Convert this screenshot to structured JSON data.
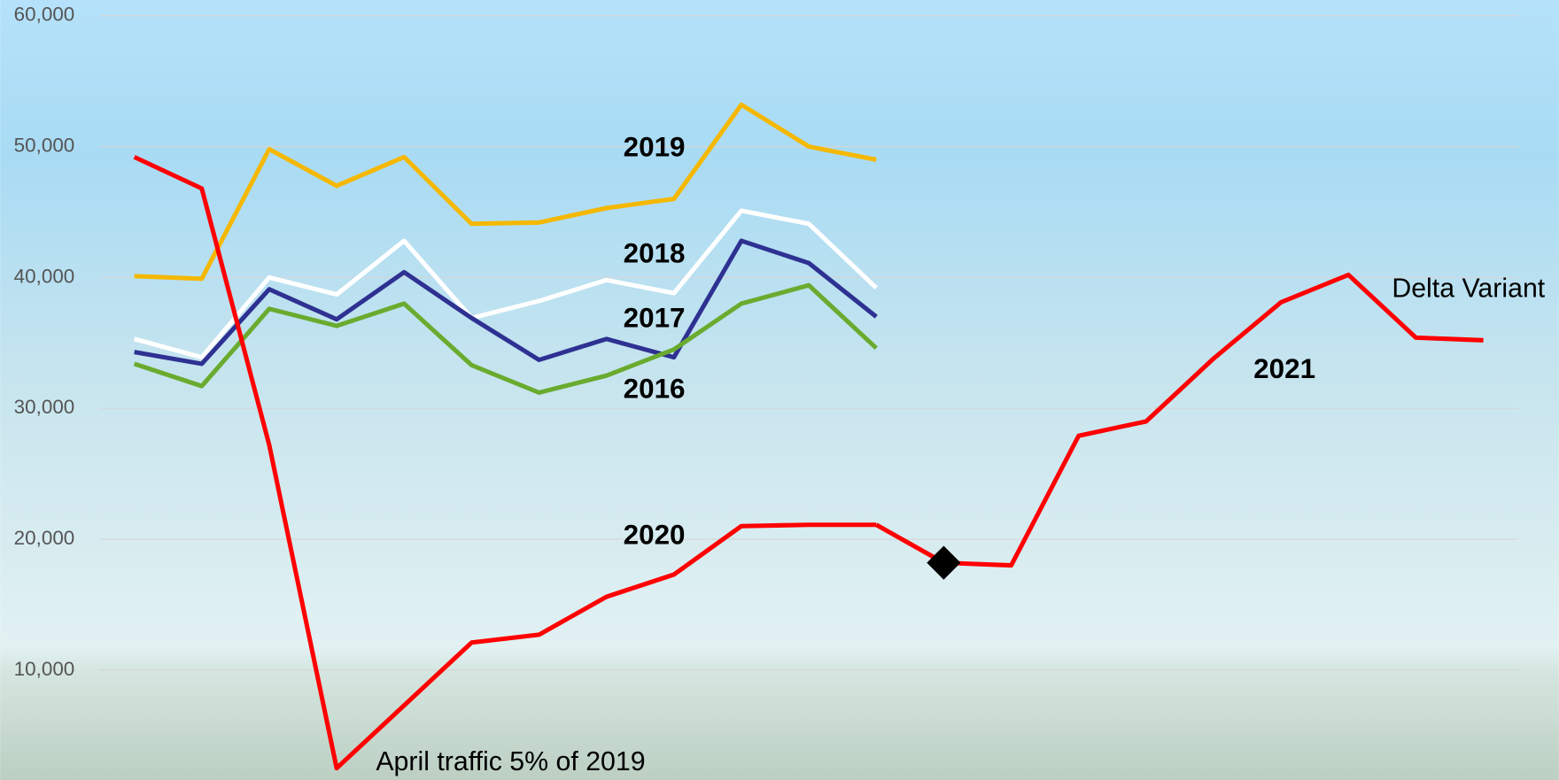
{
  "chart_data": {
    "type": "line",
    "categories": [
      null,
      null,
      null,
      null,
      null,
      null,
      null,
      null,
      null,
      null,
      null,
      null,
      null,
      null,
      null,
      null,
      null,
      null,
      null,
      null,
      null
    ],
    "ylim": [
      1600,
      61200
    ],
    "yticks": [
      {
        "value": 10000,
        "label": "10,000"
      },
      {
        "value": 20000,
        "label": "20,000"
      },
      {
        "value": 30000,
        "label": "30,000"
      },
      {
        "value": 40000,
        "label": "40,000"
      },
      {
        "value": 50000,
        "label": "50,000"
      },
      {
        "value": 60000,
        "label": "60,000"
      }
    ],
    "grid": true,
    "series": [
      {
        "name": "2019",
        "color": "#f5b800",
        "values": [
          40100,
          39900,
          49800,
          47000,
          49200,
          44100,
          44200,
          45300,
          46000,
          53200,
          50000,
          49000,
          null,
          null,
          null,
          null,
          null,
          null,
          null,
          null,
          null
        ]
      },
      {
        "name": "2018",
        "color": "#ffffff",
        "values": [
          35300,
          33900,
          40000,
          38700,
          42800,
          36900,
          38200,
          39800,
          38800,
          45100,
          44100,
          39200,
          null,
          null,
          null,
          null,
          null,
          null,
          null,
          null,
          null
        ]
      },
      {
        "name": "2017",
        "color": "#2e3192",
        "values": [
          34300,
          33400,
          39100,
          36800,
          40400,
          36900,
          33700,
          35300,
          33900,
          42800,
          41100,
          37000,
          null,
          null,
          null,
          null,
          null,
          null,
          null,
          null,
          null
        ]
      },
      {
        "name": "2016",
        "color": "#6aab2f",
        "values": [
          33400,
          31700,
          37600,
          36300,
          38000,
          33300,
          31200,
          32500,
          34500,
          38000,
          39400,
          34600,
          null,
          null,
          null,
          null,
          null,
          null,
          null,
          null,
          null
        ]
      },
      {
        "name": "2020",
        "color": "#ff0000",
        "values": [
          49200,
          46800,
          27200,
          2500,
          7300,
          12100,
          12700,
          15600,
          17300,
          21000,
          21100,
          21100,
          null,
          null,
          null,
          null,
          null,
          null,
          null,
          null,
          null
        ]
      },
      {
        "name": "2021",
        "color": "#ff0000",
        "values": [
          null,
          null,
          null,
          null,
          null,
          null,
          null,
          null,
          null,
          null,
          null,
          21100,
          18200,
          18000,
          27900,
          29000,
          33800,
          38100,
          40200,
          35400,
          35200
        ]
      }
    ],
    "markers": [
      {
        "series": 5,
        "index": 12,
        "shape": "diamond",
        "color": "#000000"
      }
    ],
    "annotations": [
      "April traffic 5% of 2019",
      "Delta Variant"
    ]
  }
}
